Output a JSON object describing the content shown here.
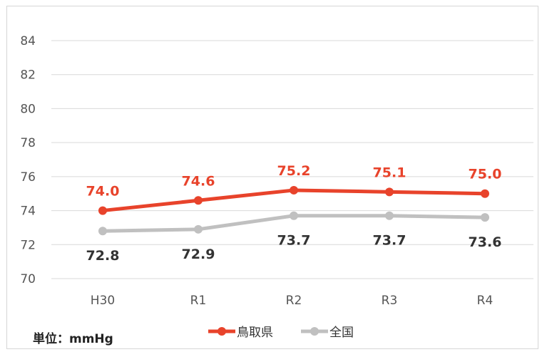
{
  "chart_data": {
    "type": "line",
    "categories": [
      "H30",
      "R1",
      "R2",
      "R3",
      "R4"
    ],
    "series": [
      {
        "name": "鳥取県",
        "values": [
          74.0,
          74.6,
          75.2,
          75.1,
          75.0
        ],
        "labels": [
          "74.0",
          "74.6",
          "75.2",
          "75.1",
          "75.0"
        ],
        "color": "#e8432b"
      },
      {
        "name": "全国",
        "values": [
          72.8,
          72.9,
          73.7,
          73.7,
          73.6
        ],
        "labels": [
          "72.8",
          "72.9",
          "73.7",
          "73.7",
          "73.6"
        ],
        "color": "#c0c0c0"
      }
    ],
    "ylim": [
      70,
      84
    ],
    "yticks": [
      "70",
      "72",
      "74",
      "76",
      "78",
      "80",
      "82",
      "84"
    ],
    "grid": true,
    "unit_label": "単位：mmHg",
    "legend_position": "bottom"
  }
}
